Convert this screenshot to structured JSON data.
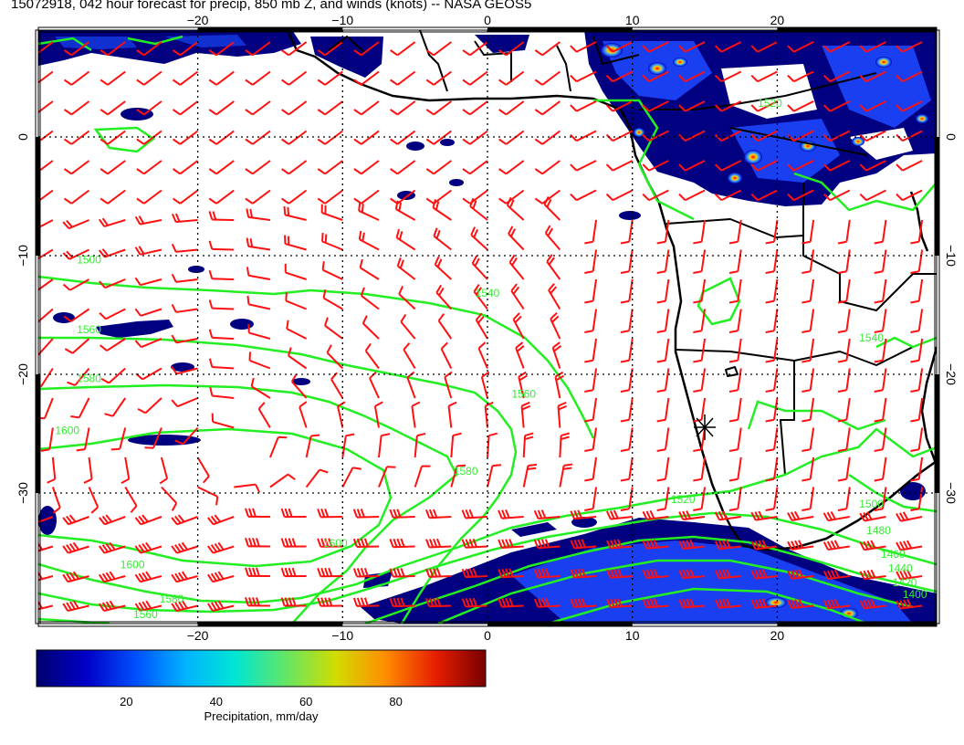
{
  "title": "15072918, 042 hour forecast for precip, 850 mb Z, and winds (knots) -- NASA GEOS5",
  "map": {
    "lon_range": [
      -31,
      31
    ],
    "lat_range": [
      -41,
      9
    ],
    "lon_ticks": [
      -20,
      -10,
      0,
      10,
      20
    ],
    "lat_ticks": [
      0,
      -10,
      -20,
      -30
    ],
    "lon_tick_labels": [
      "−20",
      "−10",
      "0",
      "10",
      "20"
    ],
    "lat_tick_labels": [
      "0",
      "−10",
      "−20",
      "−30"
    ],
    "colors": {
      "wind_barbs": "#ff1010",
      "contours": "#22ee22",
      "coastlines": "#000000",
      "precip_low": "#00006e",
      "precip_high": "#780000"
    },
    "wind_barb_spacing_deg": 2.5
  },
  "contour_labels": [
    {
      "text": "1500",
      "lon": -27.5,
      "lat": -10.4
    },
    {
      "text": "1560",
      "lon": -27.5,
      "lat": -16.3
    },
    {
      "text": "1580",
      "lon": -27.5,
      "lat": -20.4
    },
    {
      "text": "1600",
      "lon": -29.0,
      "lat": -24.8
    },
    {
      "text": "1540",
      "lon": 0.0,
      "lat": -13.2
    },
    {
      "text": "1560",
      "lon": 2.5,
      "lat": -21.7
    },
    {
      "text": "1580",
      "lon": -1.5,
      "lat": -28.2
    },
    {
      "text": "1600",
      "lon": -10.5,
      "lat": -34.3
    },
    {
      "text": "1600",
      "lon": -24.5,
      "lat": -36.1
    },
    {
      "text": "1580",
      "lon": -21.8,
      "lat": -39.0
    },
    {
      "text": "1560",
      "lon": -23.6,
      "lat": -40.3
    },
    {
      "text": "1520",
      "lon": 13.5,
      "lat": -30.6
    },
    {
      "text": "1500",
      "lon": 26.5,
      "lat": -31.0
    },
    {
      "text": "1480",
      "lon": 27.0,
      "lat": -33.2
    },
    {
      "text": "1460",
      "lon": 28.0,
      "lat": -35.2
    },
    {
      "text": "1440",
      "lon": 28.5,
      "lat": -36.4
    },
    {
      "text": "1420",
      "lon": 28.8,
      "lat": -37.6
    },
    {
      "text": "1400",
      "lon": 29.5,
      "lat": -38.6
    },
    {
      "text": "1540",
      "lon": 26.5,
      "lat": -17.0
    },
    {
      "text": "1520",
      "lon": 19.5,
      "lat": 2.8
    }
  ],
  "colorbar": {
    "label": "Precipitation, mm/day",
    "ticks": [
      "20",
      "40",
      "60",
      "80"
    ],
    "range": [
      0,
      100
    ],
    "tick_values": [
      20,
      40,
      60,
      80
    ],
    "stops": [
      "#00006e",
      "#0000c8",
      "#0050ff",
      "#00b4ff",
      "#00e6d2",
      "#64e664",
      "#d2dc00",
      "#ff8c00",
      "#e61e00",
      "#780000"
    ]
  }
}
